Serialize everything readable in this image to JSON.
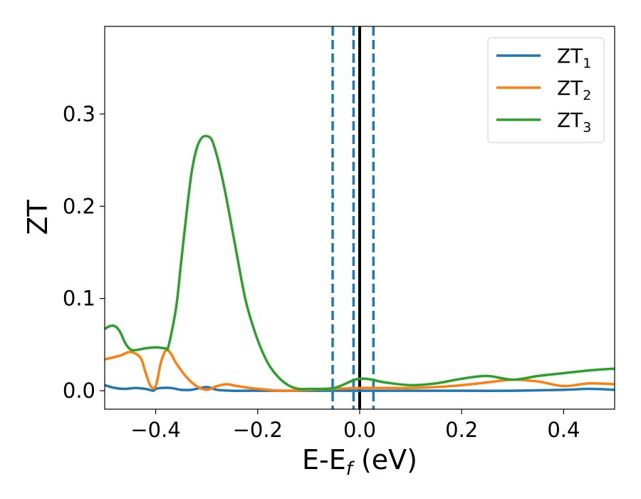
{
  "chart_data": {
    "type": "line",
    "xlabel": {
      "base": "E-E",
      "sub": "f",
      "rest": " (eV)"
    },
    "ylabel": "ZT",
    "xlim": [
      -0.5,
      0.5
    ],
    "ylim": [
      -0.02,
      0.395
    ],
    "xticks": [
      -0.4,
      -0.2,
      0.0,
      0.2,
      0.4
    ],
    "xtick_labels": [
      "−0.4",
      "−0.2",
      "0.0",
      "0.2",
      "0.4"
    ],
    "yticks": [
      0.0,
      0.1,
      0.2,
      0.3
    ],
    "ytick_labels": [
      "0.0",
      "0.1",
      "0.2",
      "0.3"
    ],
    "grid": false,
    "legend_position": "top-right",
    "series": [
      {
        "name": "ZT",
        "name_sub": "1",
        "color": "#1f77b4",
        "x": [
          -0.5,
          -0.48,
          -0.46,
          -0.44,
          -0.42,
          -0.405,
          -0.4,
          -0.39,
          -0.37,
          -0.35,
          -0.33,
          -0.3,
          -0.28,
          -0.25,
          -0.2,
          -0.15,
          -0.1,
          -0.05,
          0.0,
          0.05,
          0.1,
          0.2,
          0.3,
          0.4,
          0.45,
          0.5
        ],
        "y": [
          0.006,
          0.003,
          0.002,
          0.003,
          0.002,
          0.0,
          0.002,
          0.003,
          0.003,
          0.001,
          0.001,
          0.004,
          0.001,
          0.0,
          0.0,
          0.0,
          0.0,
          0.0,
          0.0,
          0.0,
          0.0,
          0.0,
          0.0,
          0.001,
          0.002,
          0.001
        ]
      },
      {
        "name": "ZT",
        "name_sub": "2",
        "color": "#ff7f0e",
        "x": [
          -0.5,
          -0.47,
          -0.45,
          -0.43,
          -0.42,
          -0.41,
          -0.4,
          -0.39,
          -0.38,
          -0.37,
          -0.36,
          -0.34,
          -0.32,
          -0.3,
          -0.28,
          -0.26,
          -0.24,
          -0.2,
          -0.15,
          -0.1,
          -0.05,
          0.0,
          0.05,
          0.1,
          0.15,
          0.2,
          0.25,
          0.3,
          0.35,
          0.4,
          0.45,
          0.5
        ],
        "y": [
          0.034,
          0.038,
          0.042,
          0.036,
          0.02,
          0.005,
          0.005,
          0.03,
          0.044,
          0.04,
          0.03,
          0.015,
          0.005,
          0.001,
          0.005,
          0.007,
          0.005,
          0.002,
          0.0,
          0.001,
          0.002,
          0.003,
          0.003,
          0.003,
          0.004,
          0.006,
          0.009,
          0.012,
          0.01,
          0.005,
          0.008,
          0.007
        ]
      },
      {
        "name": "ZT",
        "name_sub": "3",
        "color": "#2ca02c",
        "x": [
          -0.5,
          -0.49,
          -0.48,
          -0.47,
          -0.46,
          -0.45,
          -0.44,
          -0.42,
          -0.4,
          -0.38,
          -0.375,
          -0.36,
          -0.35,
          -0.34,
          -0.33,
          -0.32,
          -0.31,
          -0.3,
          -0.29,
          -0.28,
          -0.27,
          -0.26,
          -0.25,
          -0.24,
          -0.23,
          -0.22,
          -0.2,
          -0.18,
          -0.16,
          -0.14,
          -0.12,
          -0.1,
          -0.05,
          0.0,
          0.05,
          0.1,
          0.15,
          0.2,
          0.25,
          0.3,
          0.35,
          0.4,
          0.45,
          0.5
        ],
        "y": [
          0.067,
          0.07,
          0.07,
          0.064,
          0.052,
          0.045,
          0.044,
          0.046,
          0.047,
          0.046,
          0.048,
          0.09,
          0.14,
          0.19,
          0.235,
          0.262,
          0.274,
          0.276,
          0.272,
          0.255,
          0.232,
          0.205,
          0.175,
          0.145,
          0.115,
          0.09,
          0.055,
          0.03,
          0.015,
          0.006,
          0.002,
          0.002,
          0.003,
          0.013,
          0.009,
          0.006,
          0.008,
          0.013,
          0.016,
          0.012,
          0.016,
          0.019,
          0.022,
          0.024
        ]
      }
    ],
    "vertical_lines": [
      {
        "x": -0.053,
        "style": "dashed",
        "color": "#1f77b4"
      },
      {
        "x": -0.012,
        "style": "dashed",
        "color": "#1f77b4"
      },
      {
        "x": 0.027,
        "style": "dashed",
        "color": "#1f77b4"
      },
      {
        "x": 0.0,
        "style": "solid",
        "color": "#000000"
      }
    ]
  }
}
